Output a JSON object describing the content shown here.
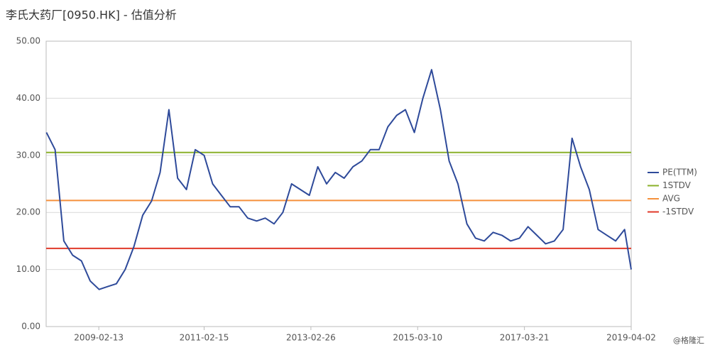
{
  "chart_data": {
    "type": "line",
    "title": "李氏大药厂[0950.HK] - 估值分析",
    "watermark": "@格隆汇",
    "x": [
      "2008-02-15",
      "2008-04-15",
      "2008-06-15",
      "2008-08-15",
      "2008-10-15",
      "2008-12-15",
      "2009-02-15",
      "2009-04-15",
      "2009-06-15",
      "2009-08-15",
      "2009-10-15",
      "2009-12-15",
      "2010-02-15",
      "2010-04-15",
      "2010-06-15",
      "2010-08-15",
      "2010-10-15",
      "2010-12-15",
      "2011-02-15",
      "2011-04-15",
      "2011-06-15",
      "2011-08-15",
      "2011-10-15",
      "2011-12-15",
      "2012-02-15",
      "2012-04-15",
      "2012-06-15",
      "2012-08-15",
      "2012-10-15",
      "2012-12-15",
      "2013-02-15",
      "2013-04-15",
      "2013-06-15",
      "2013-08-15",
      "2013-10-15",
      "2013-12-15",
      "2014-02-15",
      "2014-04-15",
      "2014-06-15",
      "2014-08-15",
      "2014-10-15",
      "2014-12-15",
      "2015-02-15",
      "2015-04-15",
      "2015-06-15",
      "2015-08-15",
      "2015-10-15",
      "2015-12-15",
      "2016-02-15",
      "2016-04-15",
      "2016-06-15",
      "2016-08-15",
      "2016-10-15",
      "2016-12-15",
      "2017-02-15",
      "2017-04-15",
      "2017-06-15",
      "2017-08-15",
      "2017-10-15",
      "2017-12-15",
      "2018-02-15",
      "2018-04-15",
      "2018-06-15",
      "2018-08-15",
      "2018-10-15",
      "2018-12-15",
      "2019-02-15",
      "2019-04-02"
    ],
    "series": [
      {
        "name": "PE(TTM)",
        "color": "#2e4a9a",
        "values": [
          34,
          31,
          15,
          12.5,
          11.5,
          8,
          6.5,
          7,
          7.5,
          10,
          14,
          19.5,
          22,
          27,
          38,
          26,
          24,
          31,
          30,
          25,
          23,
          21,
          21,
          19,
          18.5,
          19,
          18,
          20,
          25,
          24,
          23,
          28,
          25,
          27,
          26,
          28,
          29,
          31,
          31,
          35,
          37,
          38,
          34,
          40,
          45,
          38,
          29,
          25,
          18,
          15.5,
          15,
          16.5,
          16,
          15,
          15.5,
          17.5,
          16,
          14.5,
          15,
          17,
          33,
          28,
          24,
          17,
          16,
          15,
          17,
          10
        ]
      }
    ],
    "reference_lines": [
      {
        "name": "1STDV",
        "color": "#8ab02a",
        "value": 30.5
      },
      {
        "name": "AVG",
        "color": "#f5913c",
        "value": 22.1
      },
      {
        "name": "-1STDV",
        "color": "#e03a2a",
        "value": 13.7
      }
    ],
    "xlim": [
      "2008-02-13",
      "2019-04-02"
    ],
    "xticks": [
      "2009-02-13",
      "2011-02-15",
      "2013-02-26",
      "2015-03-10",
      "2017-03-21",
      "2019-04-02"
    ],
    "ylim": [
      0,
      50
    ],
    "yticks": [
      {
        "value": 0,
        "label": "0.00"
      },
      {
        "value": 10,
        "label": "10.00"
      },
      {
        "value": 20,
        "label": "20.00"
      },
      {
        "value": 30,
        "label": "30.00"
      },
      {
        "value": 40,
        "label": "40.00"
      },
      {
        "value": 50,
        "label": "50.00"
      }
    ],
    "grid": true,
    "legend": "right"
  }
}
